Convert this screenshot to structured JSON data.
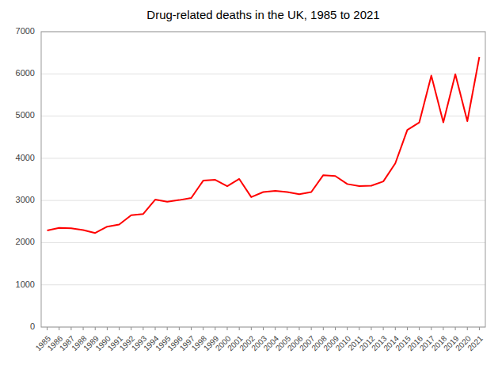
{
  "chart_data": {
    "type": "line",
    "title": "Drug-related deaths in the UK, 1985 to 2021",
    "x": [
      1985,
      1986,
      1987,
      1988,
      1989,
      1990,
      1991,
      1992,
      1993,
      1994,
      1995,
      1996,
      1997,
      1998,
      1999,
      2000,
      2001,
      2002,
      2003,
      2004,
      2005,
      2006,
      2007,
      2008,
      2009,
      2010,
      2011,
      2012,
      2013,
      2014,
      2015,
      2016,
      2017,
      2018,
      2019,
      2020,
      2021
    ],
    "values": [
      2290,
      2350,
      2340,
      2300,
      2230,
      2380,
      2430,
      2650,
      2680,
      3020,
      2970,
      3010,
      3060,
      3470,
      3490,
      3340,
      3510,
      3080,
      3200,
      3230,
      3200,
      3150,
      3200,
      3600,
      3580,
      3390,
      3340,
      3350,
      3450,
      3880,
      4670,
      4850,
      5960,
      4850,
      5990,
      4880,
      6400
    ],
    "color": "#ff0000",
    "xlim": [
      1984.5,
      2021.5
    ],
    "xticks": [
      1985,
      1986,
      1987,
      1988,
      1989,
      1990,
      1991,
      1992,
      1993,
      1994,
      1995,
      1996,
      1997,
      1998,
      1999,
      2000,
      2001,
      2002,
      2003,
      2004,
      2005,
      2006,
      2007,
      2008,
      2009,
      2010,
      2011,
      2012,
      2013,
      2014,
      2015,
      2016,
      2017,
      2018,
      2019,
      2020,
      2021
    ],
    "ylim": [
      0,
      7000
    ],
    "yticks": [
      0,
      1000,
      2000,
      3000,
      4000,
      5000,
      6000,
      7000
    ],
    "grid": true
  }
}
